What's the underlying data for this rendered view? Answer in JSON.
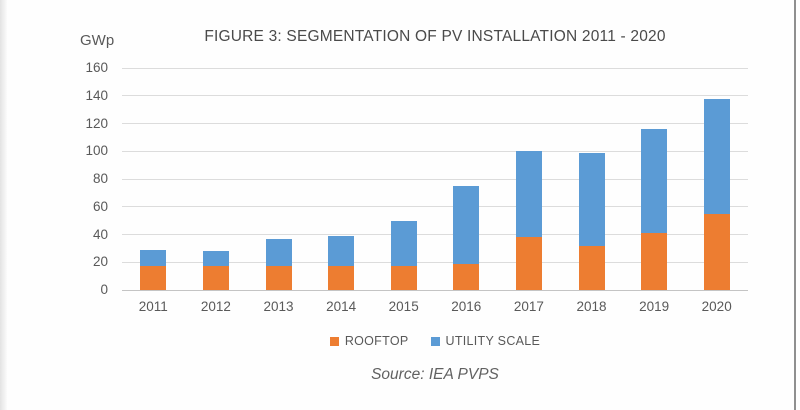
{
  "page": {
    "title": "FIGURE 3: SEGMENTATION OF PV INSTALLATION 2011 - 2020",
    "y_axis_unit": "GWp",
    "source_caption": "Source: IEA PVPS"
  },
  "legend": [
    {
      "label": "ROOFTOP",
      "color": "#ED7D31"
    },
    {
      "label": "UTILITY SCALE",
      "color": "#5B9BD5"
    }
  ],
  "chart_data": {
    "type": "bar",
    "stacked": true,
    "title": "FIGURE 3: SEGMENTATION OF PV INSTALLATION 2011 - 2020",
    "categories": [
      "2011",
      "2012",
      "2013",
      "2014",
      "2015",
      "2016",
      "2017",
      "2018",
      "2019",
      "2020"
    ],
    "series": [
      {
        "name": "ROOFTOP",
        "color": "#ED7D31",
        "values": [
          17,
          17,
          17,
          17,
          17,
          19,
          38,
          32,
          41,
          55
        ]
      },
      {
        "name": "UTILITY SCALE",
        "color": "#5B9BD5",
        "values": [
          12,
          11,
          20,
          22,
          33,
          56,
          62,
          67,
          75,
          83
        ]
      }
    ],
    "totals": [
      29,
      28,
      37,
      39,
      50,
      75,
      100,
      99,
      116,
      138
    ],
    "xlabel": "",
    "ylabel": "GWp",
    "ylim": [
      0,
      160
    ],
    "yticks": [
      0,
      20,
      40,
      60,
      80,
      100,
      120,
      140,
      160
    ],
    "grid": true,
    "legend_position": "bottom",
    "source": "Source: IEA PVPS"
  }
}
